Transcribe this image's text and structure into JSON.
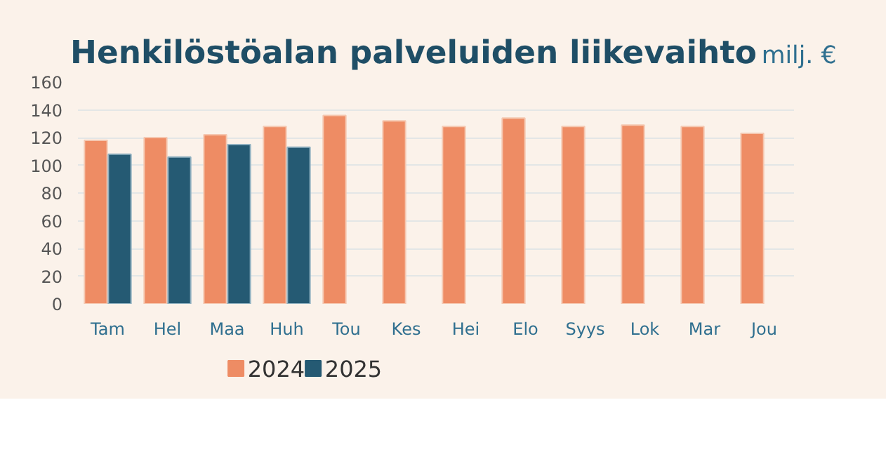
{
  "chart_data": {
    "type": "bar",
    "title": "Henkilöstöalan palveluiden liikevaihto",
    "subtitle": "milj. €",
    "categories": [
      "Tam",
      "Hel",
      "Maa",
      "Huh",
      "Tou",
      "Kes",
      "Hei",
      "Elo",
      "Syys",
      "Lok",
      "Mar",
      "Jou"
    ],
    "series": [
      {
        "name": "2024",
        "color": "#ee8c64",
        "values": [
          118,
          120,
          122,
          128,
          136,
          132,
          128,
          134,
          128,
          129,
          128,
          123
        ]
      },
      {
        "name": "2025",
        "color": "#255a73",
        "values": [
          108,
          106,
          115,
          113,
          null,
          null,
          null,
          null,
          null,
          null,
          null,
          null
        ]
      }
    ],
    "ylim": [
      0,
      160
    ],
    "yticks": [
      0,
      20,
      40,
      60,
      80,
      100,
      120,
      140,
      160
    ],
    "grid": "y",
    "legend": "bottom left"
  }
}
